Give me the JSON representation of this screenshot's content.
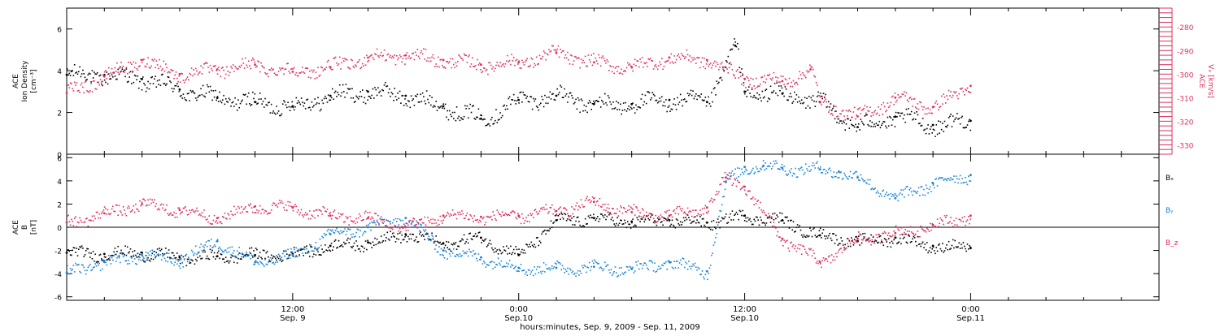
{
  "chart_data": [
    {
      "type": "scatter",
      "panel": "ion-density",
      "ylabel_lines": [
        "ACE",
        "Ion Density",
        "[cm⁻³]"
      ],
      "ylim": [
        0,
        7
      ],
      "yticks": [
        0,
        2,
        4,
        6
      ],
      "right_axis": {
        "ylabel_lines": [
          "ACE",
          "Vₓ [km/s]"
        ],
        "ylim": [
          -334,
          -272
        ],
        "yticks": [
          -330,
          -320,
          -310,
          -300,
          -290,
          -280
        ],
        "color": "#e0305a"
      },
      "series": [
        {
          "axis": "left",
          "color": "#000000",
          "x_hours": [
            0,
            2,
            4,
            6,
            8,
            10,
            12,
            14,
            16,
            18,
            20,
            22,
            24,
            26,
            28,
            30,
            32,
            34,
            35.5,
            36,
            38,
            40,
            42,
            44,
            46,
            48
          ],
          "y": [
            3.8,
            3.8,
            3.6,
            3.1,
            2.7,
            2.5,
            2.3,
            2.8,
            3.0,
            2.8,
            2.3,
            1.7,
            2.6,
            2.8,
            2.4,
            2.4,
            2.6,
            2.5,
            5.2,
            3.0,
            2.9,
            2.5,
            1.3,
            1.8,
            1.4,
            1.6
          ]
        },
        {
          "axis": "right",
          "color": "#e0305a",
          "x_hours": [
            0,
            2,
            4,
            6,
            8,
            10,
            12,
            14,
            16,
            18,
            20,
            22,
            24,
            26,
            28,
            30,
            32,
            34,
            36,
            38,
            39.5,
            40,
            42,
            44,
            46,
            48
          ],
          "y": [
            -308,
            -301,
            -294,
            -300,
            -298,
            -296,
            -299,
            -297,
            -293,
            -292,
            -294,
            -296,
            -295,
            -291,
            -295,
            -297,
            -293,
            -294,
            -302,
            -303,
            -298,
            -312,
            -318,
            -310,
            -314,
            -305
          ]
        }
      ]
    },
    {
      "type": "scatter",
      "panel": "magnetic-field",
      "ylabel_lines": [
        "ACE",
        "B",
        "[nT]"
      ],
      "ylim": [
        -6.3,
        6.3
      ],
      "yticks": [
        -6,
        -4,
        -2,
        0,
        2,
        4,
        6
      ],
      "zero_line": true,
      "series": [
        {
          "name": "Bₓ",
          "color": "#000000",
          "x_hours": [
            0,
            2,
            4,
            6,
            8,
            10,
            12,
            14,
            16,
            18,
            20,
            22,
            24,
            26,
            28,
            30,
            32,
            34,
            36,
            38,
            40,
            42,
            44,
            46,
            48
          ],
          "y": [
            -2.2,
            -2.3,
            -2.2,
            -2.6,
            -2.5,
            -2.4,
            -2.3,
            -1.6,
            -1.3,
            -0.6,
            -1.4,
            -0.9,
            -2.4,
            0.6,
            0.8,
            0.5,
            0.6,
            0.4,
            1.0,
            0.6,
            -0.7,
            -1.2,
            -0.9,
            -1.6,
            -1.8
          ]
        },
        {
          "name": "Bᵧ",
          "color": "#1a84d8",
          "x_hours": [
            0,
            2,
            4,
            6,
            8,
            10,
            12,
            14,
            16,
            18,
            20,
            22,
            24,
            26,
            28,
            30,
            32,
            34,
            35,
            36,
            37,
            38,
            40,
            41,
            42,
            44,
            46,
            48
          ],
          "y": [
            -3.9,
            -3.0,
            -2.4,
            -2.8,
            -1.2,
            -3.0,
            -2.4,
            -0.6,
            0.0,
            0.8,
            -2.0,
            -2.6,
            -3.5,
            -3.5,
            -3.4,
            -3.6,
            -3.0,
            -3.8,
            3.9,
            5.2,
            5.3,
            5.1,
            5.0,
            4.8,
            4.3,
            2.5,
            3.8,
            4.5
          ]
        },
        {
          "name": "B_z",
          "color": "#e0305a",
          "x_hours": [
            0,
            2,
            4,
            6,
            8,
            10,
            12,
            14,
            16,
            18,
            20,
            22,
            24,
            26,
            28,
            30,
            32,
            34,
            35,
            36,
            38,
            40,
            42,
            44,
            46,
            48
          ],
          "y": [
            0.4,
            1.2,
            2.0,
            1.5,
            0.8,
            1.8,
            1.7,
            1.0,
            0.8,
            0.0,
            1.0,
            0.9,
            1.0,
            1.4,
            2.2,
            1.3,
            1.0,
            1.7,
            4.3,
            3.5,
            -1.0,
            -3.0,
            -1.0,
            -0.5,
            0.2,
            1.0
          ]
        }
      ]
    }
  ],
  "x_axis": {
    "xlim_hours": [
      0,
      58
    ],
    "ticks": [
      {
        "hours": 12,
        "time": "12:00",
        "date": "Sep. 9"
      },
      {
        "hours": 24,
        "time": "0:00",
        "date": "Sep.10"
      },
      {
        "hours": 36,
        "time": "12:00",
        "date": "Sep.10"
      },
      {
        "hours": 48,
        "time": "0:00",
        "date": "Sep.11"
      }
    ],
    "minor_tick_hours": 2,
    "label": "hours:minutes, Sep.  9, 2009 - Sep. 11, 2009"
  },
  "legend": {
    "placement": "right",
    "entries": [
      {
        "text": "Bₓ",
        "color": "#000000"
      },
      {
        "text": "Bᵧ",
        "color": "#1a84d8"
      },
      {
        "text": "B_z",
        "color": "#e0305a"
      }
    ]
  }
}
